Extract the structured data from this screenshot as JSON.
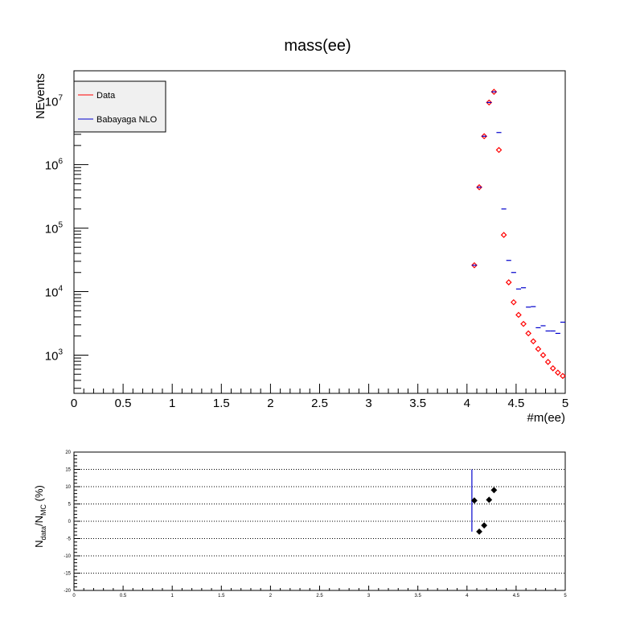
{
  "title": "mass(ee)",
  "top_panel": {
    "xlabel": "#m(ee)",
    "ylabel": "NEvents",
    "legend": {
      "position": "top-left",
      "entries": [
        {
          "label": "Data",
          "color": "#ff0000"
        },
        {
          "label": "Babayaga NLO",
          "color": "#0000cc"
        }
      ]
    }
  },
  "bottom_panel": {
    "ylabel": "N_data/N_MC (%)",
    "ylabel_main": "N",
    "ylabel_sub1": "data",
    "ylabel_mid": "/N",
    "ylabel_sub2": "MC",
    "ylabel_tail": " (%)"
  },
  "chart_data": [
    {
      "type": "scatter",
      "title": "mass(ee)",
      "xlabel": "#m(ee)",
      "ylabel": "NEvents",
      "xlim": [
        0,
        5
      ],
      "ylim": [
        250,
        30000000
      ],
      "yscale": "log",
      "x_ticks": [
        "0",
        "0.5",
        "1",
        "1.5",
        "2",
        "2.5",
        "3",
        "3.5",
        "4",
        "4.5",
        "5"
      ],
      "y_ticks": [
        {
          "value": 1000,
          "mant": "10",
          "exp": "3"
        },
        {
          "value": 10000,
          "mant": "10",
          "exp": "4"
        },
        {
          "value": 100000,
          "mant": "10",
          "exp": "5"
        },
        {
          "value": 1000000,
          "mant": "10",
          "exp": "6"
        },
        {
          "value": 10000000,
          "mant": "10",
          "exp": "7"
        }
      ],
      "series": [
        {
          "name": "Data",
          "color": "#ff0000",
          "marker": "open-diamond",
          "x": [
            4.075,
            4.125,
            4.175,
            4.225,
            4.275,
            4.325,
            4.375,
            4.425,
            4.475,
            4.525,
            4.575,
            4.625,
            4.675,
            4.725,
            4.775,
            4.825,
            4.875,
            4.925,
            4.975
          ],
          "y": [
            26000,
            440000,
            2800000,
            9500000,
            14000000,
            1700000,
            78000,
            14000,
            6800,
            4300,
            3100,
            2200,
            1650,
            1250,
            1000,
            780,
            620,
            530,
            470
          ]
        },
        {
          "name": "Babayaga NLO",
          "color": "#0000cc",
          "marker": "horizontal-bar",
          "x": [
            4.075,
            4.125,
            4.175,
            4.225,
            4.275,
            4.325,
            4.375,
            4.425,
            4.475,
            4.525,
            4.575,
            4.625,
            4.675,
            4.725,
            4.775,
            4.825,
            4.875,
            4.925,
            4.975
          ],
          "y": [
            26000,
            440000,
            2800000,
            9500000,
            14000000,
            3200000,
            200000,
            31000,
            20000,
            11000,
            11500,
            5700,
            5800,
            2700,
            2900,
            2400,
            2400,
            2200,
            3300
          ]
        }
      ]
    },
    {
      "type": "scatter",
      "ylabel": "N_data/N_MC (%)",
      "xlim": [
        0,
        5
      ],
      "ylim": [
        -20,
        20
      ],
      "grid": "horizontal-dotted",
      "x_ticks": [
        "0",
        "0.5",
        "1",
        "1.5",
        "2",
        "2.5",
        "3",
        "3.5",
        "4",
        "4.5",
        "5"
      ],
      "y_ticks": [
        "-20",
        "-15",
        "-10",
        "-5",
        "0",
        "5",
        "10",
        "15",
        "20"
      ],
      "series": [
        {
          "color": "#000000",
          "marker": "filled-diamond",
          "x": [
            4.075,
            4.125,
            4.175,
            4.225,
            4.275
          ],
          "y": [
            6,
            -3,
            -1.2,
            6.2,
            9
          ],
          "y_err_low": [
            9,
            0,
            0,
            0,
            0
          ],
          "y_err_high": [
            9,
            0,
            0,
            0,
            0
          ],
          "err_color": "#0000cc"
        }
      ]
    }
  ]
}
